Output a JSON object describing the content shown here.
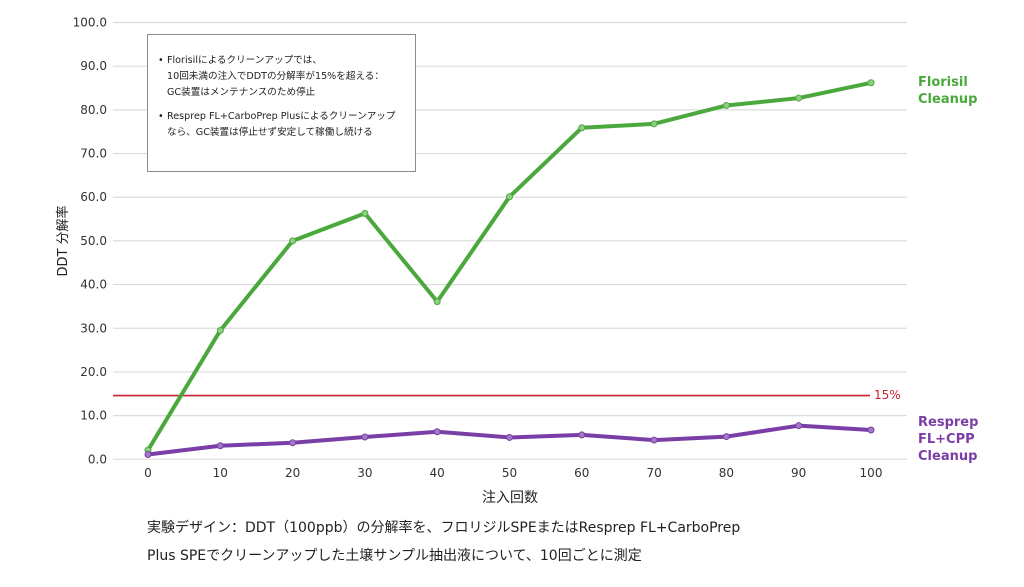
{
  "chart_data": {
    "type": "line",
    "title": "",
    "xlabel": "注入回数",
    "ylabel": "DDT 分解率",
    "x": [
      0,
      10,
      20,
      30,
      40,
      50,
      60,
      70,
      80,
      90,
      100
    ],
    "xticks": [
      "0",
      "10",
      "20",
      "30",
      "40",
      "50",
      "60",
      "70",
      "80",
      "90",
      "100"
    ],
    "yticks": [
      "0.0",
      "10.0",
      "20.0",
      "30.0",
      "40.0",
      "50.0",
      "60.0",
      "70.0",
      "80.0",
      "90.0",
      "100.0"
    ],
    "ylim": [
      0,
      100
    ],
    "xlim": [
      0,
      100
    ],
    "grid": true,
    "legend_position": "right (inline labels at line ends)",
    "series": [
      {
        "name": "Florisil Cleanup",
        "label_lines": [
          "Florisil",
          "Cleanup"
        ],
        "color": "#4aa83c",
        "values": [
          2.1,
          29.5,
          50.0,
          56.3,
          36.1,
          60.1,
          75.9,
          76.8,
          81.0,
          82.7,
          86.2
        ]
      },
      {
        "name": "Resprep FL+CPP Cleanup",
        "label_lines": [
          "Resprep",
          "FL+CPP",
          "Cleanup"
        ],
        "color": "#7a3ea6",
        "values": [
          1.1,
          3.1,
          3.8,
          5.1,
          6.3,
          5.0,
          5.6,
          4.4,
          5.2,
          7.7,
          6.7
        ]
      }
    ],
    "threshold": {
      "value": 14.6,
      "label": "15%",
      "color": "#c8232c"
    },
    "annotations": [
      {
        "type": "note-box",
        "items": [
          [
            "Florisilによるクリーンアップでは、",
            "10回未満の注入でDDTの分解率が15%を超える：",
            "GC装置はメンテナンスのため停止"
          ],
          [
            "Resprep FL+CarboPrep Plusによるクリーンアップ",
            "なら、GC装置は停止せず安定して稼働し続ける"
          ]
        ]
      }
    ],
    "caption": [
      "実験デザイン：DDT（100ppb）の分解率を、フロリジルSPEまたはResprep FL+CarboPrep",
      "Plus SPEでクリーンアップした土壌サンプル抽出液について、10回ごとに測定"
    ]
  },
  "note": {
    "item1": {
      "line1": "Florisilによるクリーンアップでは、",
      "line2": "10回未満の注入でDDTの分解率が15%を超える：",
      "line3": "GC装置はメンテナンスのため停止"
    },
    "item2": {
      "line1": "Resprep FL+CarboPrep Plusによるクリーンアップ",
      "line2": "なら、GC装置は停止せず安定して稼働し続ける"
    }
  },
  "labels": {
    "florisil": {
      "line1": "Florisil",
      "line2": "Cleanup"
    },
    "resprep": {
      "line1": "Resprep",
      "line2": "FL+CPP",
      "line3": "Cleanup"
    },
    "threshold": "15%"
  },
  "caption": {
    "line1": "実験デザイン：DDT（100ppb）の分解率を、フロリジルSPEまたはResprep FL+CarboPrep",
    "line2": "Plus SPEでクリーンアップした土壌サンプル抽出液について、10回ごとに測定"
  }
}
